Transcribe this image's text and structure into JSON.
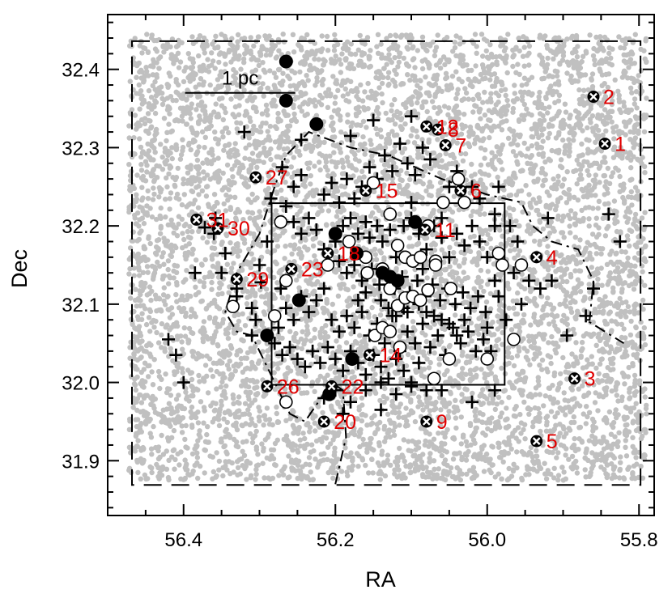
{
  "chart_data": {
    "type": "scatter",
    "title": "",
    "xlabel": "RA",
    "ylabel": "Dec",
    "x_reversed": true,
    "xlim": [
      56.5,
      55.78
    ],
    "ylim": [
      31.83,
      32.47
    ],
    "xticks": [
      56.4,
      56.2,
      56.0,
      55.8
    ],
    "xtick_labels": [
      "56.4",
      "56.2",
      "56.0",
      "55.8"
    ],
    "yticks": [
      31.9,
      32.0,
      32.1,
      32.2,
      32.3,
      32.4
    ],
    "ytick_labels": [
      "31.9",
      "32.0",
      "32.1",
      "32.2",
      "32.3",
      "32.4"
    ],
    "grid": false,
    "legend": "none",
    "colors": {
      "background_points": "#c0c0c0",
      "labels": "#e00000",
      "markers": "#000000",
      "open_fill": "#ffffff"
    },
    "scale_bar": {
      "label": "1 pc",
      "ra_from": 56.398,
      "ra_to": 56.253,
      "dec": 32.37
    },
    "boxes": [
      {
        "name": "dashed-field-box",
        "style": "dashed",
        "ra": [
          56.468,
          55.798
        ],
        "dec": [
          31.869,
          32.436
        ]
      },
      {
        "name": "solid-inner-box",
        "style": "solid",
        "ra": [
          56.284,
          55.977
        ],
        "dec": [
          31.997,
          32.229
        ]
      }
    ],
    "dashdot_outline": [
      [
        56.2,
        31.87
      ],
      [
        56.186,
        31.93
      ],
      [
        56.19,
        31.99
      ],
      [
        56.205,
        32.0
      ],
      [
        56.24,
        31.95
      ],
      [
        56.26,
        31.96
      ],
      [
        56.31,
        32.06
      ],
      [
        56.33,
        32.065
      ],
      [
        56.345,
        32.09
      ],
      [
        56.33,
        32.14
      ],
      [
        56.3,
        32.19
      ],
      [
        56.28,
        32.25
      ],
      [
        56.265,
        32.29
      ],
      [
        56.235,
        32.32
      ],
      [
        56.18,
        32.3
      ],
      [
        56.13,
        32.29
      ],
      [
        56.06,
        32.26
      ],
      [
        56.0,
        32.24
      ],
      [
        55.955,
        32.23
      ],
      [
        55.94,
        32.2
      ],
      [
        55.915,
        32.18
      ],
      [
        55.88,
        32.17
      ],
      [
        55.86,
        32.13
      ],
      [
        55.865,
        32.08
      ],
      [
        55.87,
        32.08
      ],
      [
        55.82,
        32.05
      ]
    ],
    "background_count": 7000,
    "background_seed": 12345,
    "crosses": [
      [
        56.372,
        32.198
      ],
      [
        56.358,
        32.21
      ],
      [
        56.385,
        32.14
      ],
      [
        56.345,
        32.165
      ],
      [
        56.33,
        32.12
      ],
      [
        56.31,
        32.095
      ],
      [
        56.298,
        32.128
      ],
      [
        56.272,
        32.12
      ],
      [
        56.265,
        32.225
      ],
      [
        56.255,
        32.205
      ],
      [
        56.245,
        32.19
      ],
      [
        56.235,
        32.21
      ],
      [
        56.225,
        32.195
      ],
      [
        56.215,
        32.17
      ],
      [
        56.2,
        32.18
      ],
      [
        56.19,
        32.2
      ],
      [
        56.18,
        32.21
      ],
      [
        56.17,
        32.19
      ],
      [
        56.16,
        32.205
      ],
      [
        56.155,
        32.185
      ],
      [
        56.145,
        32.2
      ],
      [
        56.138,
        32.18
      ],
      [
        56.128,
        32.195
      ],
      [
        56.12,
        32.16
      ],
      [
        56.11,
        32.2
      ],
      [
        56.1,
        32.21
      ],
      [
        56.09,
        32.19
      ],
      [
        56.08,
        32.17
      ],
      [
        56.07,
        32.2
      ],
      [
        56.06,
        32.185
      ],
      [
        56.05,
        32.16
      ],
      [
        56.04,
        32.19
      ],
      [
        56.03,
        32.175
      ],
      [
        56.02,
        32.2
      ],
      [
        56.01,
        32.18
      ],
      [
        56.0,
        32.16
      ],
      [
        55.99,
        32.2
      ],
      [
        56.195,
        32.155
      ],
      [
        56.185,
        32.14
      ],
      [
        56.175,
        32.15
      ],
      [
        56.165,
        32.13
      ],
      [
        56.152,
        32.145
      ],
      [
        56.142,
        32.125
      ],
      [
        56.132,
        32.14
      ],
      [
        56.122,
        32.12
      ],
      [
        56.112,
        32.135
      ],
      [
        56.102,
        32.115
      ],
      [
        56.092,
        32.13
      ],
      [
        56.082,
        32.11
      ],
      [
        56.072,
        32.125
      ],
      [
        56.062,
        32.105
      ],
      [
        56.052,
        32.12
      ],
      [
        56.042,
        32.1
      ],
      [
        56.032,
        32.115
      ],
      [
        56.022,
        32.095
      ],
      [
        56.012,
        32.11
      ],
      [
        56.002,
        32.09
      ],
      [
        56.215,
        32.12
      ],
      [
        56.225,
        32.105
      ],
      [
        56.235,
        32.09
      ],
      [
        56.245,
        32.11
      ],
      [
        56.255,
        32.08
      ],
      [
        56.265,
        32.095
      ],
      [
        56.275,
        32.07
      ],
      [
        56.205,
        32.08
      ],
      [
        56.195,
        32.065
      ],
      [
        56.185,
        32.085
      ],
      [
        56.175,
        32.07
      ],
      [
        56.165,
        32.09
      ],
      [
        56.155,
        32.06
      ],
      [
        56.145,
        32.075
      ],
      [
        56.135,
        32.05
      ],
      [
        56.125,
        32.085
      ],
      [
        56.115,
        32.04
      ],
      [
        56.105,
        32.065
      ],
      [
        56.095,
        32.05
      ],
      [
        56.085,
        32.075
      ],
      [
        56.075,
        32.045
      ],
      [
        56.065,
        32.06
      ],
      [
        56.055,
        32.035
      ],
      [
        56.045,
        32.07
      ],
      [
        56.035,
        32.05
      ],
      [
        56.025,
        32.065
      ],
      [
        56.015,
        32.04
      ],
      [
        56.005,
        32.055
      ],
      [
        55.995,
        32.04
      ],
      [
        56.28,
        32.05
      ],
      [
        56.27,
        32.035
      ],
      [
        56.26,
        32.045
      ],
      [
        56.25,
        32.03
      ],
      [
        56.24,
        32.02
      ],
      [
        56.23,
        32.04
      ],
      [
        56.22,
        32.025
      ],
      [
        56.21,
        32.045
      ],
      [
        56.2,
        32.03
      ],
      [
        56.19,
        32.015
      ],
      [
        56.18,
        32.04
      ],
      [
        56.17,
        32.025
      ],
      [
        56.16,
        32.01
      ],
      [
        56.15,
        32.035
      ],
      [
        56.14,
        32.02
      ],
      [
        56.13,
        32.005
      ],
      [
        56.12,
        32.03
      ],
      [
        56.11,
        32.015
      ],
      [
        56.1,
        32.0
      ],
      [
        56.09,
        32.025
      ],
      [
        56.2,
        31.99
      ],
      [
        56.18,
        31.975
      ],
      [
        56.16,
        31.99
      ],
      [
        56.14,
        32.0
      ],
      [
        56.12,
        31.985
      ],
      [
        56.1,
        31.995
      ],
      [
        56.08,
        31.99
      ],
      [
        56.215,
        32.24
      ],
      [
        56.205,
        32.255
      ],
      [
        56.195,
        32.23
      ],
      [
        56.185,
        32.26
      ],
      [
        56.175,
        32.235
      ],
      [
        56.165,
        32.25
      ],
      [
        56.155,
        32.275
      ],
      [
        56.145,
        32.26
      ],
      [
        56.135,
        32.29
      ],
      [
        56.125,
        32.27
      ],
      [
        56.115,
        32.305
      ],
      [
        56.105,
        32.28
      ],
      [
        56.095,
        32.265
      ],
      [
        56.085,
        32.3
      ],
      [
        56.075,
        32.285
      ],
      [
        56.245,
        32.265
      ],
      [
        56.255,
        32.25
      ],
      [
        56.27,
        32.275
      ],
      [
        56.285,
        32.235
      ],
      [
        56.245,
        32.31
      ],
      [
        56.32,
        32.32
      ],
      [
        56.15,
        32.335
      ],
      [
        56.1,
        32.34
      ],
      [
        56.18,
        32.315
      ],
      [
        56.05,
        32.25
      ],
      [
        56.04,
        32.27
      ],
      [
        56.03,
        32.23
      ],
      [
        56.02,
        32.25
      ],
      [
        56.01,
        32.235
      ],
      [
        55.99,
        32.215
      ],
      [
        55.985,
        32.25
      ],
      [
        55.97,
        32.2
      ],
      [
        55.96,
        32.18
      ],
      [
        55.965,
        32.14
      ],
      [
        55.955,
        32.1
      ],
      [
        55.945,
        32.13
      ],
      [
        55.99,
        32.13
      ],
      [
        55.985,
        32.11
      ],
      [
        55.975,
        32.08
      ],
      [
        56.0,
        32.07
      ],
      [
        55.93,
        32.12
      ],
      [
        55.92,
        32.21
      ],
      [
        55.915,
        32.13
      ],
      [
        55.895,
        32.06
      ],
      [
        55.87,
        32.085
      ],
      [
        55.86,
        32.12
      ],
      [
        55.84,
        32.215
      ],
      [
        55.825,
        32.18
      ],
      [
        55.99,
        31.99
      ],
      [
        56.02,
        31.975
      ],
      [
        56.06,
        31.99
      ],
      [
        56.14,
        31.965
      ],
      [
        56.19,
        31.96
      ],
      [
        56.215,
        31.98
      ],
      [
        56.42,
        32.055
      ],
      [
        56.41,
        32.035
      ],
      [
        56.4,
        32.0
      ],
      [
        56.31,
        32.06
      ],
      [
        56.305,
        32.08
      ],
      [
        56.33,
        32.11
      ],
      [
        56.35,
        32.14
      ],
      [
        56.36,
        32.19
      ],
      [
        56.3,
        32.15
      ],
      [
        56.29,
        32.18
      ],
      [
        56.06,
        32.21
      ],
      [
        56.1,
        32.23
      ],
      [
        56.085,
        32.145
      ],
      [
        56.095,
        32.155
      ],
      [
        56.16,
        32.115
      ],
      [
        56.17,
        32.105
      ],
      [
        56.14,
        32.105
      ],
      [
        56.13,
        32.095
      ],
      [
        56.12,
        32.085
      ],
      [
        56.11,
        32.095
      ],
      [
        56.105,
        32.09
      ],
      [
        56.09,
        32.1
      ],
      [
        56.08,
        32.09
      ],
      [
        56.07,
        32.085
      ],
      [
        56.06,
        32.08
      ],
      [
        56.05,
        32.075
      ],
      [
        56.04,
        32.06
      ],
      [
        56.03,
        32.08
      ]
    ],
    "open_circles": [
      [
        56.272,
        32.205
      ],
      [
        56.335,
        32.097
      ],
      [
        56.28,
        32.085
      ],
      [
        56.265,
        32.13
      ],
      [
        56.21,
        32.15
      ],
      [
        56.182,
        32.18
      ],
      [
        56.16,
        32.16
      ],
      [
        56.15,
        32.255
      ],
      [
        56.128,
        32.215
      ],
      [
        56.118,
        32.175
      ],
      [
        56.108,
        32.16
      ],
      [
        56.098,
        32.155
      ],
      [
        56.088,
        32.16
      ],
      [
        56.078,
        32.2
      ],
      [
        56.068,
        32.155
      ],
      [
        56.058,
        32.23
      ],
      [
        56.048,
        32.12
      ],
      [
        56.038,
        32.26
      ],
      [
        56.158,
        32.14
      ],
      [
        56.138,
        32.145
      ],
      [
        56.128,
        32.12
      ],
      [
        56.118,
        32.098
      ],
      [
        56.108,
        32.108
      ],
      [
        56.098,
        32.11
      ],
      [
        56.088,
        32.105
      ],
      [
        56.078,
        32.118
      ],
      [
        56.068,
        32.15
      ],
      [
        56.148,
        32.06
      ],
      [
        56.138,
        32.07
      ],
      [
        56.128,
        32.065
      ],
      [
        56.05,
        32.03
      ],
      [
        56.07,
        32.005
      ],
      [
        56.0,
        32.03
      ],
      [
        55.98,
        32.15
      ],
      [
        55.965,
        32.055
      ],
      [
        55.955,
        32.15
      ],
      [
        55.985,
        32.165
      ],
      [
        56.265,
        31.975
      ],
      [
        56.03,
        32.23
      ],
      [
        56.115,
        32.045
      ]
    ],
    "filled_circles": [
      [
        56.265,
        32.41
      ],
      [
        56.265,
        32.36
      ],
      [
        56.225,
        32.33
      ],
      [
        56.29,
        32.06
      ],
      [
        56.248,
        32.105
      ],
      [
        56.2,
        32.19
      ],
      [
        56.172,
        32.165
      ],
      [
        56.138,
        32.14
      ],
      [
        56.128,
        32.135
      ],
      [
        56.118,
        32.13
      ],
      [
        56.178,
        32.03
      ],
      [
        56.208,
        31.985
      ],
      [
        56.095,
        32.205
      ]
    ],
    "labeled_sources": [
      {
        "id": "1",
        "ra": 55.845,
        "dec": 32.305
      },
      {
        "id": "2",
        "ra": 55.86,
        "dec": 32.365
      },
      {
        "id": "3",
        "ra": 55.885,
        "dec": 32.005
      },
      {
        "id": "4",
        "ra": 55.935,
        "dec": 32.16
      },
      {
        "id": "5",
        "ra": 55.935,
        "dec": 31.925
      },
      {
        "id": "6",
        "ra": 56.035,
        "dec": 32.245
      },
      {
        "id": "7",
        "ra": 56.055,
        "dec": 32.303
      },
      {
        "id": "8",
        "ra": 56.065,
        "dec": 32.323
      },
      {
        "id": "9",
        "ra": 56.08,
        "dec": 31.95
      },
      {
        "id": "11",
        "ra": 56.082,
        "dec": 32.195
      },
      {
        "id": "12",
        "ra": 56.08,
        "dec": 32.327
      },
      {
        "id": "14",
        "ra": 56.155,
        "dec": 32.035
      },
      {
        "id": "15",
        "ra": 56.16,
        "dec": 32.245
      },
      {
        "id": "18",
        "ra": 56.21,
        "dec": 32.165
      },
      {
        "id": "20",
        "ra": 56.215,
        "dec": 31.95
      },
      {
        "id": "22",
        "ra": 56.205,
        "dec": 31.995
      },
      {
        "id": "23",
        "ra": 56.258,
        "dec": 32.145
      },
      {
        "id": "26",
        "ra": 56.29,
        "dec": 31.995
      },
      {
        "id": "27",
        "ra": 56.305,
        "dec": 32.262
      },
      {
        "id": "29",
        "ra": 56.33,
        "dec": 32.132
      },
      {
        "id": "30",
        "ra": 56.355,
        "dec": 32.197
      },
      {
        "id": "31",
        "ra": 56.383,
        "dec": 32.208
      }
    ]
  }
}
